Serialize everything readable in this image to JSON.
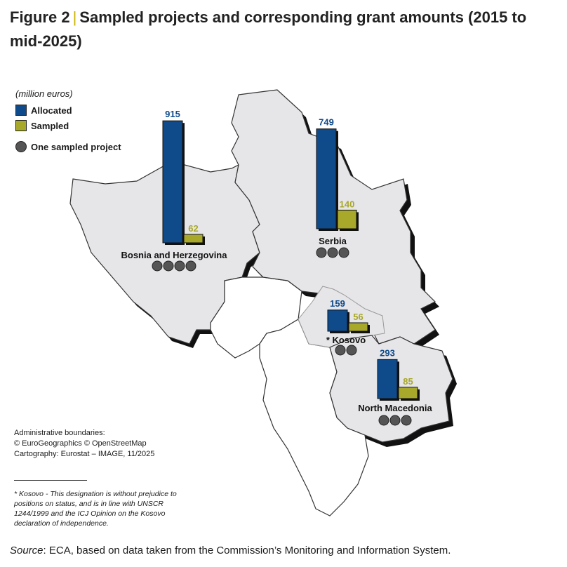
{
  "figure": {
    "label": "Figure 2",
    "separator": "|",
    "title": "Sampled projects and corresponding grant amounts (2015 to mid-2025)"
  },
  "legend": {
    "unit": "(million euros)",
    "allocated": "Allocated",
    "sampled": "Sampled",
    "project": "One sampled project"
  },
  "colors": {
    "allocated": "#0f4a8a",
    "sampled": "#a8a82a",
    "dot": "#555555",
    "land": "#e6e6e8",
    "other_land": "#ffffff"
  },
  "chart_data": {
    "type": "bar",
    "unit": "million euros",
    "series": [
      {
        "name": "Allocated",
        "values": [
          915,
          749,
          159,
          293
        ]
      },
      {
        "name": "Sampled",
        "values": [
          62,
          140,
          56,
          85
        ]
      }
    ],
    "categories": [
      "Bosnia and Herzegovina",
      "Serbia",
      "* Kosovo",
      "North Macedonia"
    ],
    "sampled_projects": [
      4,
      3,
      2,
      3
    ]
  },
  "attribution": {
    "line1": "Administrative boundaries:",
    "line2": "© EuroGeographics © OpenStreetMap",
    "line3": "Cartography: Eurostat – IMAGE, 11/2025"
  },
  "footnote": "* Kosovo - This designation is without prejudice to positions on status, and is in line with UNSCR 1244/1999 and the ICJ Opinion on the Kosovo declaration of independence.",
  "source": {
    "label": "Source",
    "text": ": ECA, based on data taken from the Commission’s Monitoring and Information System."
  }
}
